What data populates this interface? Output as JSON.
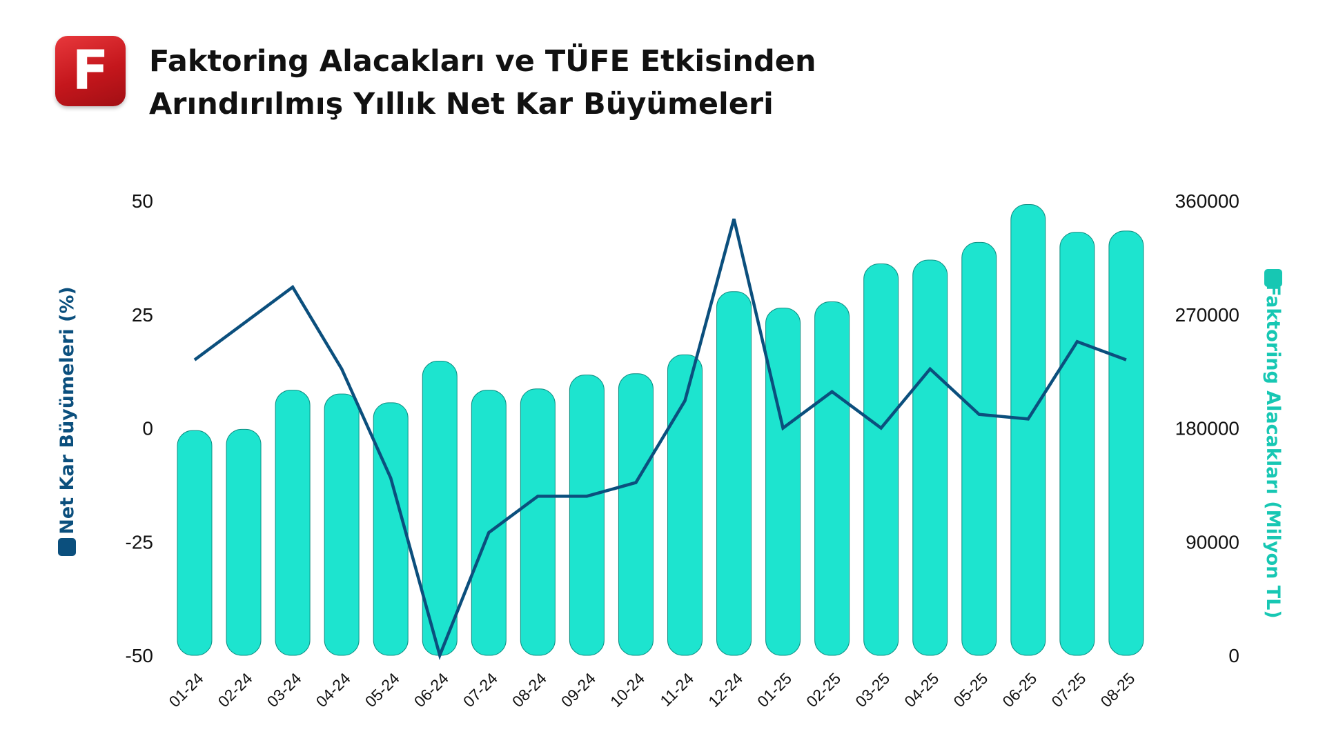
{
  "header": {
    "logo_letter": "F",
    "title_line1": "Faktoring Alacakları ve TÜFE Etkisinden",
    "title_line2": "Arındırılmış Yıllık Net Kar Büyümeleri"
  },
  "colors": {
    "bar": "#1de4cf",
    "bar_stroke": "#0e8f83",
    "line": "#0b4f7d",
    "left_axis_label": "#0b4f7d",
    "right_axis_label": "#17c7b3"
  },
  "chart_data": {
    "type": "bar",
    "categories": [
      "01-24",
      "02-24",
      "03-24",
      "04-24",
      "05-24",
      "06-24",
      "07-24",
      "08-24",
      "09-24",
      "10-24",
      "11-24",
      "12-24",
      "01-25",
      "02-25",
      "03-25",
      "04-25",
      "05-25",
      "06-25",
      "07-25",
      "08-25"
    ],
    "series": [
      {
        "type": "bar",
        "axis": "right",
        "values": [
          178000,
          179000,
          210000,
          207000,
          200000,
          233000,
          210000,
          211000,
          222000,
          223000,
          238000,
          288000,
          275000,
          280000,
          310000,
          313000,
          327000,
          357000,
          335000,
          336000
        ]
      },
      {
        "type": "line",
        "axis": "left",
        "values": [
          15,
          23,
          31,
          13,
          -11,
          -50,
          -23,
          -15,
          -15,
          -12,
          6,
          46,
          0,
          8,
          0,
          13,
          3,
          2,
          19,
          15
        ]
      }
    ],
    "ylabel_left": "Net Kar Büyümeleri (%)",
    "ylabel_right": "Faktoring Alacakları (Milyon TL)",
    "ylim_left": [
      -50,
      50
    ],
    "yticks_left": [
      "50",
      "25",
      "0",
      "-25",
      "-50"
    ],
    "ylim_right": [
      0,
      360000
    ],
    "yticks_right": [
      "360000",
      "270000",
      "180000",
      "90000",
      "0"
    ],
    "grid": false
  }
}
